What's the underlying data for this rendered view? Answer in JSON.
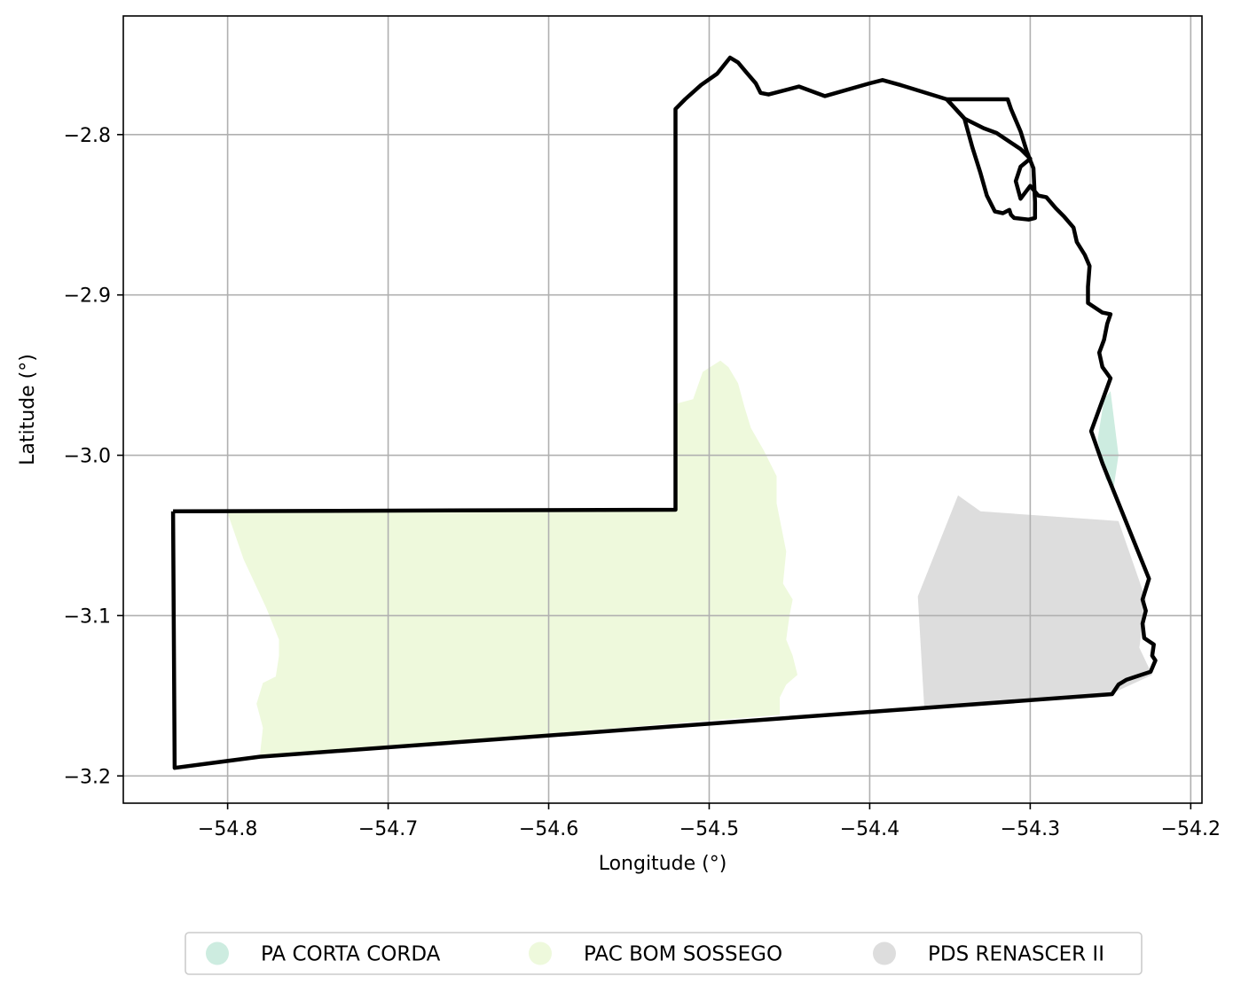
{
  "chart_data": {
    "type": "map",
    "xlabel": "Longitude (°)",
    "ylabel": "Latitude (°)",
    "xlim": [
      -54.865,
      -54.193
    ],
    "ylim": [
      -3.217,
      -2.726
    ],
    "grid": true,
    "xticks": [
      {
        "value": -54.8,
        "label": "−54.8"
      },
      {
        "value": -54.7,
        "label": "−54.7"
      },
      {
        "value": -54.6,
        "label": "−54.6"
      },
      {
        "value": -54.5,
        "label": "−54.5"
      },
      {
        "value": -54.4,
        "label": "−54.4"
      },
      {
        "value": -54.3,
        "label": "−54.3"
      },
      {
        "value": -54.2,
        "label": "−54.2"
      }
    ],
    "yticks": [
      {
        "value": -2.8,
        "label": "−2.8"
      },
      {
        "value": -2.9,
        "label": "−2.9"
      },
      {
        "value": -3.0,
        "label": "−3.0"
      },
      {
        "value": -3.1,
        "label": "−3.1"
      },
      {
        "value": -3.2,
        "label": "−3.2"
      }
    ],
    "legend_position": "bottom-center",
    "series": [
      {
        "name": "PA CORTA CORDA",
        "color": "#cdece0",
        "coordinates": [
          [
            -54.254,
            -2.965
          ],
          [
            -54.25,
            -2.96
          ],
          [
            -54.245,
            -3.0
          ],
          [
            -54.248,
            -3.02
          ],
          [
            -54.253,
            -3.015
          ],
          [
            -54.258,
            -2.99
          ]
        ]
      },
      {
        "name": "PAC BOM SOSSEGO",
        "color": "#eef9dc",
        "coordinates": [
          [
            -54.8,
            -3.036
          ],
          [
            -54.521,
            -3.034
          ],
          [
            -54.521,
            -2.968
          ],
          [
            -54.51,
            -2.965
          ],
          [
            -54.504,
            -2.948
          ],
          [
            -54.493,
            -2.941
          ],
          [
            -54.488,
            -2.945
          ],
          [
            -54.482,
            -2.955
          ],
          [
            -54.478,
            -2.97
          ],
          [
            -54.474,
            -2.983
          ],
          [
            -54.466,
            -2.997
          ],
          [
            -54.458,
            -3.013
          ],
          [
            -54.458,
            -3.03
          ],
          [
            -54.455,
            -3.045
          ],
          [
            -54.452,
            -3.06
          ],
          [
            -54.454,
            -3.08
          ],
          [
            -54.448,
            -3.09
          ],
          [
            -54.45,
            -3.1
          ],
          [
            -54.452,
            -3.115
          ],
          [
            -54.448,
            -3.125
          ],
          [
            -54.445,
            -3.137
          ],
          [
            -54.452,
            -3.143
          ],
          [
            -54.456,
            -3.151
          ],
          [
            -54.456,
            -3.162
          ],
          [
            -54.78,
            -3.188
          ],
          [
            -54.778,
            -3.17
          ],
          [
            -54.782,
            -3.155
          ],
          [
            -54.778,
            -3.142
          ],
          [
            -54.77,
            -3.138
          ],
          [
            -54.768,
            -3.125
          ],
          [
            -54.768,
            -3.115
          ],
          [
            -54.776,
            -3.095
          ],
          [
            -54.79,
            -3.065
          ]
        ]
      },
      {
        "name": "PDS RENASCER II",
        "color": "#dddddd",
        "coordinates": [
          [
            -54.37,
            -3.088
          ],
          [
            -54.345,
            -3.025
          ],
          [
            -54.331,
            -3.035
          ],
          [
            -54.245,
            -3.041
          ],
          [
            -54.228,
            -3.09
          ],
          [
            -54.232,
            -3.12
          ],
          [
            -54.224,
            -3.137
          ],
          [
            -54.25,
            -3.149
          ],
          [
            -54.366,
            -3.158
          ]
        ]
      }
    ],
    "boundary": {
      "name": "",
      "color": "#000000",
      "coordinates": [
        [
          -54.834,
          -3.035
        ],
        [
          -54.521,
          -3.034
        ],
        [
          -54.521,
          -2.784
        ],
        [
          -54.515,
          -2.778
        ],
        [
          -54.505,
          -2.769
        ],
        [
          -54.495,
          -2.762
        ],
        [
          -54.487,
          -2.752
        ],
        [
          -54.482,
          -2.755
        ],
        [
          -54.477,
          -2.761
        ],
        [
          -54.471,
          -2.768
        ],
        [
          -54.468,
          -2.774
        ],
        [
          -54.463,
          -2.775
        ],
        [
          -54.444,
          -2.77
        ],
        [
          -54.428,
          -2.776
        ],
        [
          -54.4,
          -2.768
        ],
        [
          -54.392,
          -2.766
        ],
        [
          -54.381,
          -2.769
        ],
        [
          -54.352,
          -2.778
        ],
        [
          -54.341,
          -2.79
        ],
        [
          -54.329,
          -2.796
        ],
        [
          -54.321,
          -2.799
        ],
        [
          -54.315,
          -2.803
        ],
        [
          -54.306,
          -2.809
        ],
        [
          -54.3,
          -2.815
        ],
        [
          -54.306,
          -2.82
        ],
        [
          -54.309,
          -2.829
        ],
        [
          -54.306,
          -2.84
        ],
        [
          -54.3,
          -2.832
        ],
        [
          -54.295,
          -2.838
        ],
        [
          -54.29,
          -2.839
        ],
        [
          -54.284,
          -2.846
        ],
        [
          -54.279,
          -2.851
        ],
        [
          -54.273,
          -2.858
        ],
        [
          -54.271,
          -2.867
        ],
        [
          -54.266,
          -2.875
        ],
        [
          -54.263,
          -2.882
        ],
        [
          -54.264,
          -2.895
        ],
        [
          -54.264,
          -2.905
        ],
        [
          -54.255,
          -2.911
        ],
        [
          -54.25,
          -2.912
        ],
        [
          -54.252,
          -2.918
        ],
        [
          -54.254,
          -2.928
        ],
        [
          -54.257,
          -2.936
        ],
        [
          -54.255,
          -2.945
        ],
        [
          -54.25,
          -2.952
        ],
        [
          -54.262,
          -2.985
        ],
        [
          -54.255,
          -3.005
        ],
        [
          -54.226,
          -3.077
        ],
        [
          -54.23,
          -3.09
        ],
        [
          -54.228,
          -3.097
        ],
        [
          -54.23,
          -3.105
        ],
        [
          -54.229,
          -3.114
        ],
        [
          -54.223,
          -3.118
        ],
        [
          -54.224,
          -3.125
        ],
        [
          -54.222,
          -3.128
        ],
        [
          -54.225,
          -3.135
        ],
        [
          -54.24,
          -3.14
        ],
        [
          -54.245,
          -3.143
        ],
        [
          -54.249,
          -3.149
        ],
        [
          -54.78,
          -3.188
        ],
        [
          -54.833,
          -3.195
        ],
        [
          -54.834,
          -3.035
        ]
      ],
      "inner_lines": [
        [
          [
            -54.352,
            -2.778
          ],
          [
            -54.341,
            -2.79
          ],
          [
            -54.336,
            -2.808
          ],
          [
            -54.331,
            -2.824
          ],
          [
            -54.327,
            -2.838
          ],
          [
            -54.322,
            -2.848
          ],
          [
            -54.317,
            -2.849
          ],
          [
            -54.313,
            -2.847
          ],
          [
            -54.312,
            -2.85
          ],
          [
            -54.31,
            -2.852
          ],
          [
            -54.301,
            -2.853
          ],
          [
            -54.297,
            -2.852
          ],
          [
            -54.297,
            -2.842
          ],
          [
            -54.298,
            -2.821
          ],
          [
            -54.302,
            -2.811
          ],
          [
            -54.306,
            -2.798
          ],
          [
            -54.312,
            -2.784
          ],
          [
            -54.314,
            -2.778
          ],
          [
            -54.352,
            -2.778
          ]
        ]
      ]
    }
  }
}
